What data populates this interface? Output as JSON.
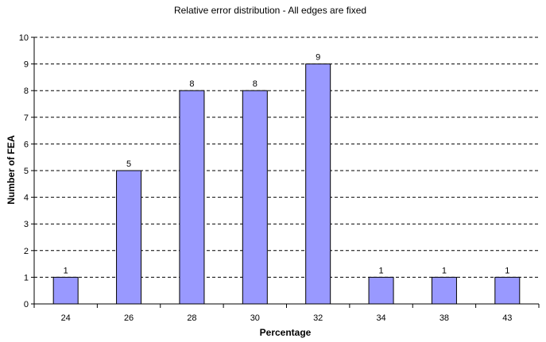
{
  "chart_data": {
    "type": "bar",
    "title": "Relative error distribution - All edges  are fixed",
    "xlabel": "Percentage",
    "ylabel": "Number of FEA",
    "categories": [
      "24",
      "26",
      "28",
      "30",
      "32",
      "34",
      "38",
      "43"
    ],
    "values": [
      1,
      5,
      8,
      8,
      9,
      1,
      1,
      1
    ],
    "ylim": [
      0,
      10
    ],
    "yticks": [
      "0",
      "1",
      "2",
      "3",
      "4",
      "5",
      "6",
      "7",
      "8",
      "9",
      "10"
    ],
    "data_labels": [
      "1",
      "5",
      "8",
      "8",
      "9",
      "1",
      "1",
      "1"
    ],
    "grid": "horizontal-dashed",
    "legend": "none",
    "colors": {
      "bar_fill": "#9999ff",
      "bar_stroke": "#000000",
      "grid": "#000000"
    }
  }
}
